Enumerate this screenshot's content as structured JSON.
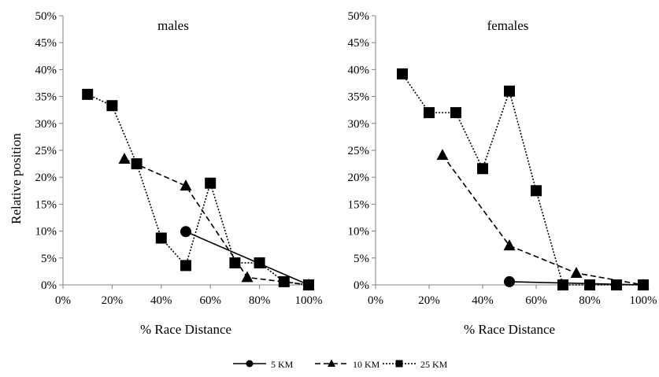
{
  "y_axis_label": "Relative position",
  "chart_data": [
    {
      "type": "line",
      "title": "males",
      "xlabel": "% Race Distance",
      "ylabel": "Relative position",
      "x_ticks": [
        "0%",
        "20%",
        "40%",
        "60%",
        "80%",
        "100%"
      ],
      "y_ticks": [
        "0%",
        "5%",
        "10%",
        "15%",
        "20%",
        "25%",
        "30%",
        "35%",
        "40%",
        "45%",
        "50%"
      ],
      "xlim": [
        0,
        100
      ],
      "ylim": [
        0,
        50
      ],
      "grid": false,
      "legend": "bottom",
      "series": [
        {
          "name": "5 KM",
          "x": [
            50,
            100
          ],
          "y": [
            9.9,
            0.0
          ]
        },
        {
          "name": "10 KM",
          "x": [
            25,
            50,
            75,
            100
          ],
          "y": [
            23.4,
            18.4,
            1.4,
            0.0
          ]
        },
        {
          "name": "25 KM",
          "x": [
            10,
            20,
            30,
            40,
            50,
            60,
            70,
            80,
            90,
            100
          ],
          "y": [
            35.4,
            33.3,
            22.5,
            8.7,
            3.6,
            18.9,
            4.1,
            4.1,
            0.6,
            0.0
          ]
        }
      ]
    },
    {
      "type": "line",
      "title": "females",
      "xlabel": "% Race Distance",
      "ylabel": "",
      "x_ticks": [
        "0%",
        "20%",
        "40%",
        "60%",
        "80%",
        "100%"
      ],
      "y_ticks": [
        "0%",
        "5%",
        "10%",
        "15%",
        "20%",
        "25%",
        "30%",
        "35%",
        "40%",
        "45%",
        "50%"
      ],
      "xlim": [
        0,
        100
      ],
      "ylim": [
        0,
        50
      ],
      "grid": false,
      "legend": "bottom",
      "series": [
        {
          "name": "5 KM",
          "x": [
            50,
            100
          ],
          "y": [
            0.6,
            0.0
          ]
        },
        {
          "name": "10 KM",
          "x": [
            25,
            50,
            75,
            100
          ],
          "y": [
            24.1,
            7.3,
            2.2,
            0.0
          ]
        },
        {
          "name": "25 KM",
          "x": [
            10,
            20,
            30,
            40,
            50,
            60,
            70,
            80,
            90,
            100
          ],
          "y": [
            39.2,
            32.0,
            32.0,
            21.6,
            36.0,
            17.5,
            0.0,
            0.0,
            0.0,
            0.0
          ]
        }
      ]
    }
  ],
  "legend": {
    "items": [
      {
        "name": "5 KM",
        "marker": "circle",
        "dash": "solid"
      },
      {
        "name": "10 KM",
        "marker": "triangle",
        "dash": "dashed"
      },
      {
        "name": "25 KM",
        "marker": "square",
        "dash": "dotted"
      }
    ]
  }
}
